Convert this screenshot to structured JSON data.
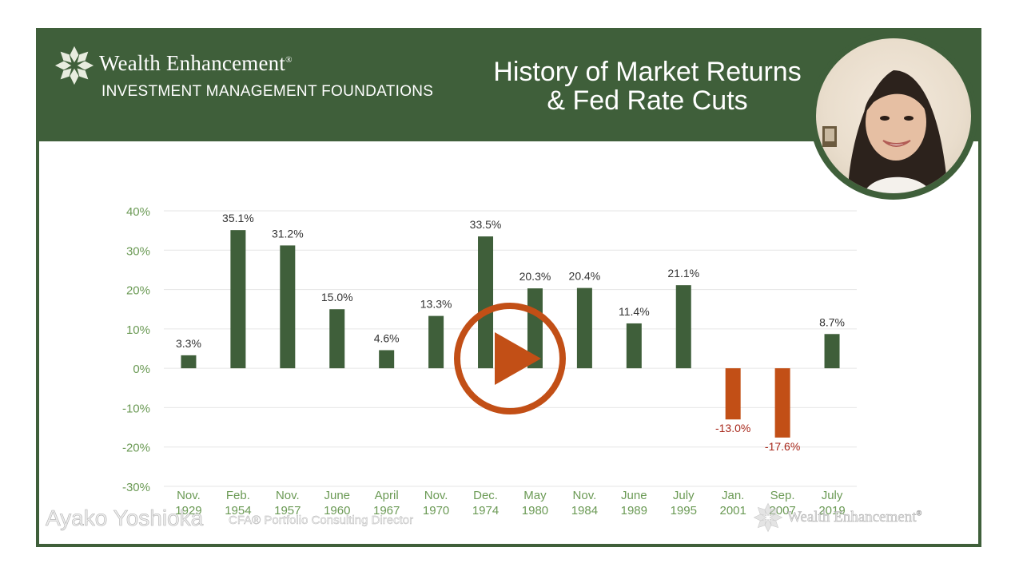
{
  "header": {
    "brand_name": "Wealth Enhancement",
    "brand_mark": "®",
    "brand_subtitle": "INVESTMENT MANAGEMENT FOUNDATIONS",
    "title_line1": "History of Market Returns",
    "title_line2": "& Fed Rate Cuts"
  },
  "presenter": {
    "name": "Ayako Yoshioka",
    "role": "CFA®   Portfolio Consulting Director"
  },
  "watermark": {
    "brand": "Wealth Enhancement",
    "mark": "®"
  },
  "colors": {
    "brand_green": "#3f5f3a",
    "positive_bar": "#3f5f3a",
    "negative_bar": "#c24f16",
    "axis_label": "#6b9a55",
    "negative_label": "#a8281b",
    "play": "#c24f16"
  },
  "icons": {
    "logo": "leaf-cluster-icon",
    "play": "play-icon"
  },
  "chart_data": {
    "type": "bar",
    "categories": [
      [
        "Nov.",
        "1929"
      ],
      [
        "Feb.",
        "1954"
      ],
      [
        "Nov.",
        "1957"
      ],
      [
        "June",
        "1960"
      ],
      [
        "April",
        "1967"
      ],
      [
        "Nov.",
        "1970"
      ],
      [
        "Dec.",
        "1974"
      ],
      [
        "May",
        "1980"
      ],
      [
        "Nov.",
        "1984"
      ],
      [
        "June",
        "1989"
      ],
      [
        "July",
        "1995"
      ],
      [
        "Jan.",
        "2001"
      ],
      [
        "Sep.",
        "2007"
      ],
      [
        "July",
        "2019"
      ]
    ],
    "values": [
      3.3,
      35.1,
      31.2,
      15.0,
      4.6,
      13.3,
      33.5,
      20.3,
      20.4,
      11.4,
      21.1,
      -13.0,
      -17.6,
      8.7
    ],
    "value_labels": [
      "3.3%",
      "35.1%",
      "31.2%",
      "15.0%",
      "4.6%",
      "13.3%",
      "33.5%",
      "20.3%",
      "20.4%",
      "11.4%",
      "21.1%",
      "-13.0%",
      "-17.6%",
      "8.7%"
    ],
    "yticks": [
      40,
      30,
      20,
      10,
      0,
      -10,
      -20,
      -30
    ],
    "ytick_labels": [
      "40%",
      "30%",
      "20%",
      "10%",
      "0%",
      "-10%",
      "-20%",
      "-30%"
    ],
    "ylim": [
      -30,
      40
    ],
    "grid": true,
    "legend": "none"
  }
}
